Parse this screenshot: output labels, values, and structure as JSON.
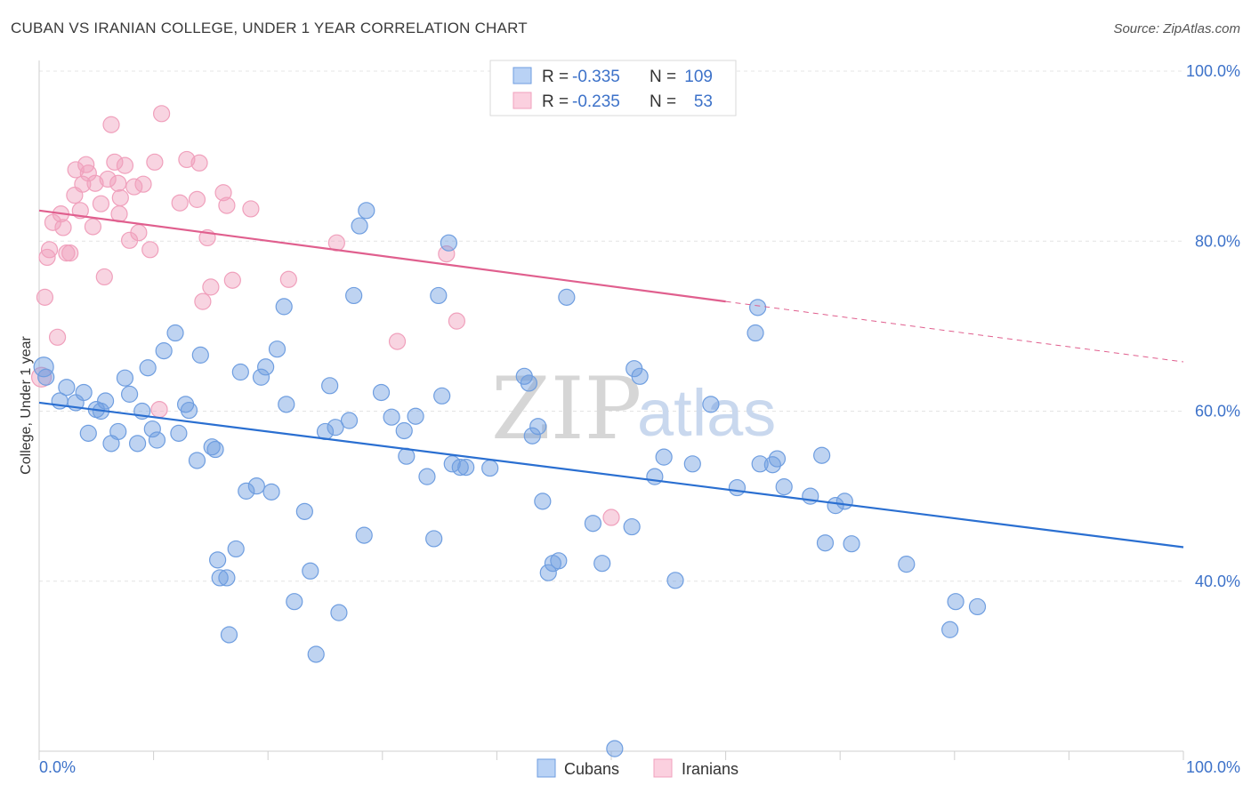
{
  "header": {
    "title": "CUBAN VS IRANIAN COLLEGE, UNDER 1 YEAR CORRELATION CHART",
    "source": "Source: ZipAtlas.com"
  },
  "watermark": {
    "zip": "ZIP",
    "atlas": "atlas"
  },
  "legend": {
    "r_label": "R =",
    "n_label": "N =",
    "rows": [
      {
        "r": "-0.335",
        "n": "109"
      },
      {
        "r": "-0.235",
        "n": "53"
      }
    ]
  },
  "chart_data": {
    "type": "scatter",
    "ylabel": "College, Under 1 year",
    "xlim": [
      0,
      100
    ],
    "ylim": [
      20,
      100
    ],
    "x_tick_labels": [
      "0.0%",
      "100.0%"
    ],
    "y_ticks": [
      {
        "value": 100,
        "label": "100.0%"
      },
      {
        "value": 80,
        "label": "80.0%"
      },
      {
        "value": 60,
        "label": "60.0%"
      },
      {
        "value": 40,
        "label": "40.0%"
      }
    ],
    "grid": true,
    "colors": {
      "cubans": "#6f9ee0",
      "iranians": "#f0a0bc",
      "cubans_line": "#2a6fd1",
      "iranians_line": "#e05f8e"
    },
    "series": [
      {
        "name": "Cubans",
        "trend": {
          "x0": 0,
          "y0": 61.0,
          "x1": 100,
          "y1": 44.0
        },
        "points": [
          [
            0.4,
            65.2
          ],
          [
            0.6,
            64.0
          ],
          [
            1.8,
            61.2
          ],
          [
            2.4,
            62.8
          ],
          [
            3.2,
            61.0
          ],
          [
            3.9,
            62.2
          ],
          [
            4.3,
            57.4
          ],
          [
            5.0,
            60.2
          ],
          [
            5.4,
            60.0
          ],
          [
            5.8,
            61.2
          ],
          [
            6.3,
            56.2
          ],
          [
            6.9,
            57.6
          ],
          [
            7.5,
            63.9
          ],
          [
            7.9,
            62.0
          ],
          [
            8.6,
            56.2
          ],
          [
            9.0,
            60.0
          ],
          [
            9.5,
            65.1
          ],
          [
            9.9,
            57.9
          ],
          [
            10.3,
            56.6
          ],
          [
            10.9,
            67.1
          ],
          [
            11.9,
            69.2
          ],
          [
            12.2,
            57.4
          ],
          [
            12.8,
            60.8
          ],
          [
            13.1,
            60.1
          ],
          [
            13.8,
            54.2
          ],
          [
            14.1,
            66.6
          ],
          [
            15.1,
            55.8
          ],
          [
            15.4,
            55.5
          ],
          [
            15.6,
            42.5
          ],
          [
            15.8,
            40.4
          ],
          [
            16.4,
            40.4
          ],
          [
            16.6,
            33.7
          ],
          [
            17.2,
            43.8
          ],
          [
            17.6,
            64.6
          ],
          [
            18.1,
            50.6
          ],
          [
            19.0,
            51.2
          ],
          [
            19.4,
            64.0
          ],
          [
            19.8,
            65.2
          ],
          [
            20.3,
            50.5
          ],
          [
            20.8,
            67.3
          ],
          [
            21.4,
            72.3
          ],
          [
            21.6,
            60.8
          ],
          [
            22.3,
            37.6
          ],
          [
            23.2,
            48.2
          ],
          [
            23.7,
            41.2
          ],
          [
            24.2,
            31.4
          ],
          [
            25.0,
            57.6
          ],
          [
            25.4,
            63.0
          ],
          [
            25.9,
            58.1
          ],
          [
            26.2,
            36.3
          ],
          [
            27.1,
            58.9
          ],
          [
            27.5,
            73.6
          ],
          [
            28.0,
            81.8
          ],
          [
            28.4,
            45.4
          ],
          [
            28.6,
            83.6
          ],
          [
            29.9,
            62.2
          ],
          [
            30.8,
            59.3
          ],
          [
            31.9,
            57.7
          ],
          [
            32.1,
            54.7
          ],
          [
            32.9,
            59.4
          ],
          [
            33.9,
            52.3
          ],
          [
            34.5,
            45.0
          ],
          [
            34.9,
            73.6
          ],
          [
            35.2,
            61.8
          ],
          [
            35.8,
            79.8
          ],
          [
            36.1,
            53.8
          ],
          [
            36.8,
            53.4
          ],
          [
            37.3,
            53.4
          ],
          [
            39.4,
            53.3
          ],
          [
            42.4,
            64.1
          ],
          [
            42.8,
            63.3
          ],
          [
            43.1,
            57.1
          ],
          [
            43.6,
            58.2
          ],
          [
            44.0,
            49.4
          ],
          [
            44.5,
            41.0
          ],
          [
            44.9,
            42.1
          ],
          [
            45.4,
            42.4
          ],
          [
            46.1,
            73.4
          ],
          [
            48.4,
            46.8
          ],
          [
            49.2,
            42.1
          ],
          [
            50.3,
            20.3
          ],
          [
            51.8,
            46.4
          ],
          [
            52.0,
            65.0
          ],
          [
            52.5,
            64.1
          ],
          [
            53.8,
            52.3
          ],
          [
            54.6,
            54.6
          ],
          [
            55.6,
            40.1
          ],
          [
            57.1,
            53.8
          ],
          [
            58.7,
            60.8
          ],
          [
            61.0,
            51.0
          ],
          [
            62.6,
            69.2
          ],
          [
            62.8,
            72.2
          ],
          [
            63.0,
            53.8
          ],
          [
            64.1,
            53.7
          ],
          [
            64.5,
            54.4
          ],
          [
            65.1,
            51.1
          ],
          [
            67.4,
            50.0
          ],
          [
            68.4,
            54.8
          ],
          [
            68.7,
            44.5
          ],
          [
            69.6,
            48.9
          ],
          [
            70.4,
            49.4
          ],
          [
            71.0,
            44.4
          ],
          [
            75.8,
            42.0
          ],
          [
            79.6,
            34.3
          ],
          [
            80.1,
            37.6
          ],
          [
            82.0,
            37.0
          ]
        ]
      },
      {
        "name": "Iranians",
        "trend": {
          "x0": 0,
          "y0": 83.6,
          "x1": 60,
          "y1": 72.9,
          "dash_x1": 100,
          "dash_y1": 65.8
        },
        "points": [
          [
            0.2,
            64.0
          ],
          [
            0.5,
            73.4
          ],
          [
            0.7,
            78.1
          ],
          [
            0.9,
            79.0
          ],
          [
            1.2,
            82.2
          ],
          [
            1.6,
            68.7
          ],
          [
            1.9,
            83.2
          ],
          [
            2.1,
            81.6
          ],
          [
            2.4,
            78.6
          ],
          [
            2.7,
            78.6
          ],
          [
            3.1,
            85.4
          ],
          [
            3.2,
            88.4
          ],
          [
            3.6,
            83.6
          ],
          [
            3.8,
            86.7
          ],
          [
            4.1,
            89.0
          ],
          [
            4.3,
            88.0
          ],
          [
            4.7,
            81.7
          ],
          [
            4.9,
            86.8
          ],
          [
            5.4,
            84.4
          ],
          [
            5.7,
            75.8
          ],
          [
            6.0,
            87.3
          ],
          [
            6.3,
            93.7
          ],
          [
            6.6,
            89.3
          ],
          [
            6.9,
            86.8
          ],
          [
            7.0,
            83.2
          ],
          [
            7.1,
            85.1
          ],
          [
            7.5,
            88.9
          ],
          [
            7.9,
            80.1
          ],
          [
            8.3,
            86.4
          ],
          [
            8.7,
            81.0
          ],
          [
            9.1,
            86.7
          ],
          [
            9.7,
            79.0
          ],
          [
            10.1,
            89.3
          ],
          [
            10.5,
            60.2
          ],
          [
            10.7,
            95.0
          ],
          [
            12.3,
            84.5
          ],
          [
            12.9,
            89.6
          ],
          [
            13.8,
            84.9
          ],
          [
            14.0,
            89.2
          ],
          [
            14.3,
            72.9
          ],
          [
            14.7,
            80.4
          ],
          [
            15.0,
            74.6
          ],
          [
            16.1,
            85.7
          ],
          [
            16.4,
            84.2
          ],
          [
            16.9,
            75.4
          ],
          [
            18.5,
            83.8
          ],
          [
            21.8,
            75.5
          ],
          [
            26.0,
            79.8
          ],
          [
            31.3,
            68.2
          ],
          [
            35.6,
            78.5
          ],
          [
            36.5,
            70.6
          ],
          [
            50.0,
            47.5
          ],
          [
            54.2,
            99.9
          ]
        ]
      }
    ]
  }
}
